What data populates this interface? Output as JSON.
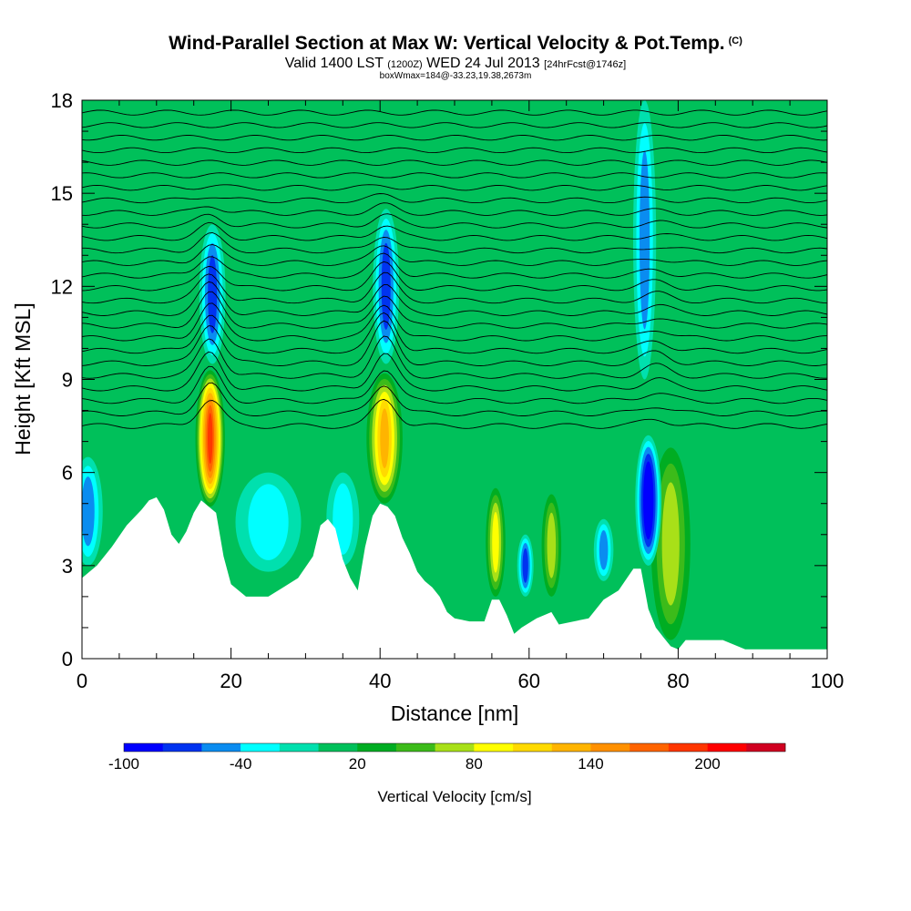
{
  "header": {
    "title": "Wind-Parallel Section at Max W: Vertical Velocity & Pot.Temp.",
    "copyright": "(C)",
    "valid": "Valid 1400 LST",
    "valid_z": "(1200Z)",
    "date": "WED 24 Jul 2013",
    "forecast": "[24hrFcst@1746z]",
    "boxline": "boxWmax=184@-33.23,19.38,2673m"
  },
  "chart_data": {
    "type": "heatmap",
    "xlabel": "Distance [nm]",
    "ylabel": "Height [Kft MSL]",
    "xlim": [
      0,
      100
    ],
    "ylim": [
      0,
      18
    ],
    "x_ticks": [
      0,
      20,
      40,
      60,
      80,
      100
    ],
    "y_ticks": [
      0,
      3,
      6,
      9,
      12,
      15,
      18
    ],
    "background_value_range": [
      0,
      10
    ],
    "terrain_height_kft": [
      [
        0,
        2.6
      ],
      [
        2,
        3.0
      ],
      [
        4,
        3.6
      ],
      [
        6,
        4.3
      ],
      [
        8,
        4.8
      ],
      [
        9,
        5.1
      ],
      [
        10,
        5.2
      ],
      [
        11,
        4.8
      ],
      [
        12,
        4.0
      ],
      [
        13,
        3.7
      ],
      [
        14,
        4.1
      ],
      [
        15,
        4.7
      ],
      [
        16,
        5.1
      ],
      [
        17,
        4.9
      ],
      [
        18,
        4.7
      ],
      [
        19,
        3.3
      ],
      [
        20,
        2.4
      ],
      [
        22,
        2.0
      ],
      [
        25,
        2.0
      ],
      [
        27,
        2.3
      ],
      [
        29,
        2.6
      ],
      [
        31,
        3.3
      ],
      [
        32,
        4.3
      ],
      [
        33,
        4.5
      ],
      [
        34,
        4.2
      ],
      [
        35,
        3.2
      ],
      [
        36,
        2.6
      ],
      [
        37,
        2.2
      ],
      [
        38,
        3.6
      ],
      [
        39,
        4.6
      ],
      [
        40,
        5.0
      ],
      [
        41,
        4.9
      ],
      [
        42,
        4.6
      ],
      [
        43,
        3.9
      ],
      [
        44,
        3.4
      ],
      [
        45,
        2.8
      ],
      [
        46,
        2.5
      ],
      [
        47,
        2.3
      ],
      [
        48,
        2.0
      ],
      [
        49,
        1.5
      ],
      [
        50,
        1.3
      ],
      [
        52,
        1.2
      ],
      [
        54,
        1.2
      ],
      [
        55,
        1.9
      ],
      [
        56,
        1.9
      ],
      [
        57,
        1.4
      ],
      [
        58,
        0.8
      ],
      [
        59,
        1.0
      ],
      [
        61,
        1.3
      ],
      [
        63,
        1.5
      ],
      [
        64,
        1.1
      ],
      [
        66,
        1.2
      ],
      [
        68,
        1.3
      ],
      [
        69,
        1.6
      ],
      [
        70,
        1.9
      ],
      [
        72,
        2.2
      ],
      [
        74,
        2.9
      ],
      [
        75,
        2.9
      ],
      [
        76,
        1.6
      ],
      [
        77,
        1.0
      ],
      [
        78,
        0.7
      ],
      [
        79,
        0.4
      ],
      [
        80,
        0.3
      ],
      [
        81,
        0.6
      ],
      [
        84,
        0.6
      ],
      [
        86,
        0.6
      ],
      [
        89,
        0.3
      ],
      [
        92,
        0.3
      ],
      [
        100,
        0.3
      ]
    ],
    "w_features": [
      {
        "x": 17.2,
        "y_bottom": 4.9,
        "y_top": 9.3,
        "peak_cm_s": 190,
        "width_nm": 1.8
      },
      {
        "x": 40.6,
        "y_bottom": 5.0,
        "y_top": 9.2,
        "peak_cm_s": 130,
        "width_nm": 2.2
      },
      {
        "x": 55.5,
        "y_bottom": 2.0,
        "y_top": 5.5,
        "peak_cm_s": 90,
        "width_nm": 1.2
      },
      {
        "x": 63.0,
        "y_bottom": 2.0,
        "y_top": 5.3,
        "peak_cm_s": 70,
        "width_nm": 1.2
      },
      {
        "x": 79.0,
        "y_bottom": 0.6,
        "y_top": 6.8,
        "peak_cm_s": 70,
        "width_nm": 2.4
      },
      {
        "x": 76.0,
        "y_bottom": 3.0,
        "y_top": 7.2,
        "peak_cm_s": -100,
        "width_nm": 1.6
      },
      {
        "x": 17.5,
        "y_bottom": 9.5,
        "y_top": 14.0,
        "peak_cm_s": -60,
        "width_nm": 1.6
      },
      {
        "x": 40.8,
        "y_bottom": 9.5,
        "y_top": 14.5,
        "peak_cm_s": -60,
        "width_nm": 1.6
      },
      {
        "x": 75.5,
        "y_bottom": 9.0,
        "y_top": 18.0,
        "peak_cm_s": -45,
        "width_nm": 1.4
      },
      {
        "x": 0.8,
        "y_bottom": 3.0,
        "y_top": 6.5,
        "peak_cm_s": -55,
        "width_nm": 1.8
      },
      {
        "x": 25.0,
        "y_bottom": 2.8,
        "y_top": 6.0,
        "peak_cm_s": -35,
        "width_nm": 4.0
      },
      {
        "x": 35.0,
        "y_bottom": 3.0,
        "y_top": 6.0,
        "peak_cm_s": -35,
        "width_nm": 2.0
      },
      {
        "x": 59.5,
        "y_bottom": 2.0,
        "y_top": 4.0,
        "peak_cm_s": -60,
        "width_nm": 1.0
      },
      {
        "x": 70.0,
        "y_bottom": 2.5,
        "y_top": 4.5,
        "peak_cm_s": -40,
        "width_nm": 1.2
      }
    ],
    "theta_contours": {
      "count": 26,
      "base_kft": 7.5,
      "top_kft": 17.6
    },
    "colorbar": {
      "label": "Vertical Velocity [cm/s]",
      "tick_labels": [
        "-100",
        "-40",
        "20",
        "80",
        "140",
        "200"
      ],
      "tick_values": [
        -100,
        -40,
        20,
        80,
        140,
        200
      ],
      "min": -100,
      "max": 240,
      "step": 20,
      "colors": [
        "#0000ff",
        "#0033f0",
        "#0a8cf0",
        "#00ffff",
        "#00e0ae",
        "#00c05a",
        "#00ad22",
        "#3cbb1a",
        "#a8e018",
        "#ffff00",
        "#ffda00",
        "#ffb400",
        "#ff9000",
        "#ff6400",
        "#ff3600",
        "#ff0000",
        "#d00020"
      ]
    }
  }
}
